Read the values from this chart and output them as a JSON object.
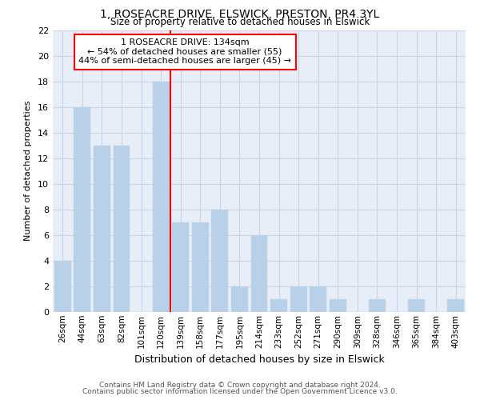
{
  "title1": "1, ROSEACRE DRIVE, ELSWICK, PRESTON, PR4 3YL",
  "title2": "Size of property relative to detached houses in Elswick",
  "xlabel": "Distribution of detached houses by size in Elswick",
  "ylabel": "Number of detached properties",
  "categories": [
    "26sqm",
    "44sqm",
    "63sqm",
    "82sqm",
    "101sqm",
    "120sqm",
    "139sqm",
    "158sqm",
    "177sqm",
    "195sqm",
    "214sqm",
    "233sqm",
    "252sqm",
    "271sqm",
    "290sqm",
    "309sqm",
    "328sqm",
    "346sqm",
    "365sqm",
    "384sqm",
    "403sqm"
  ],
  "values": [
    4,
    16,
    13,
    13,
    0,
    18,
    7,
    7,
    8,
    2,
    6,
    1,
    2,
    2,
    1,
    0,
    1,
    0,
    1,
    0,
    1
  ],
  "bar_color": "#b8d0e8",
  "bar_edge_color": "#b8d0e8",
  "vline_x": 5.5,
  "ylim": [
    0,
    22
  ],
  "yticks": [
    0,
    2,
    4,
    6,
    8,
    10,
    12,
    14,
    16,
    18,
    20,
    22
  ],
  "annotation_box_text": "1 ROSEACRE DRIVE: 134sqm\n← 54% of detached houses are smaller (55)\n44% of semi-detached houses are larger (45) →",
  "footer1": "Contains HM Land Registry data © Crown copyright and database right 2024.",
  "footer2": "Contains public sector information licensed under the Open Government Licence v3.0.",
  "grid_color": "#c8d4e8",
  "bg_color": "#e8eef8"
}
